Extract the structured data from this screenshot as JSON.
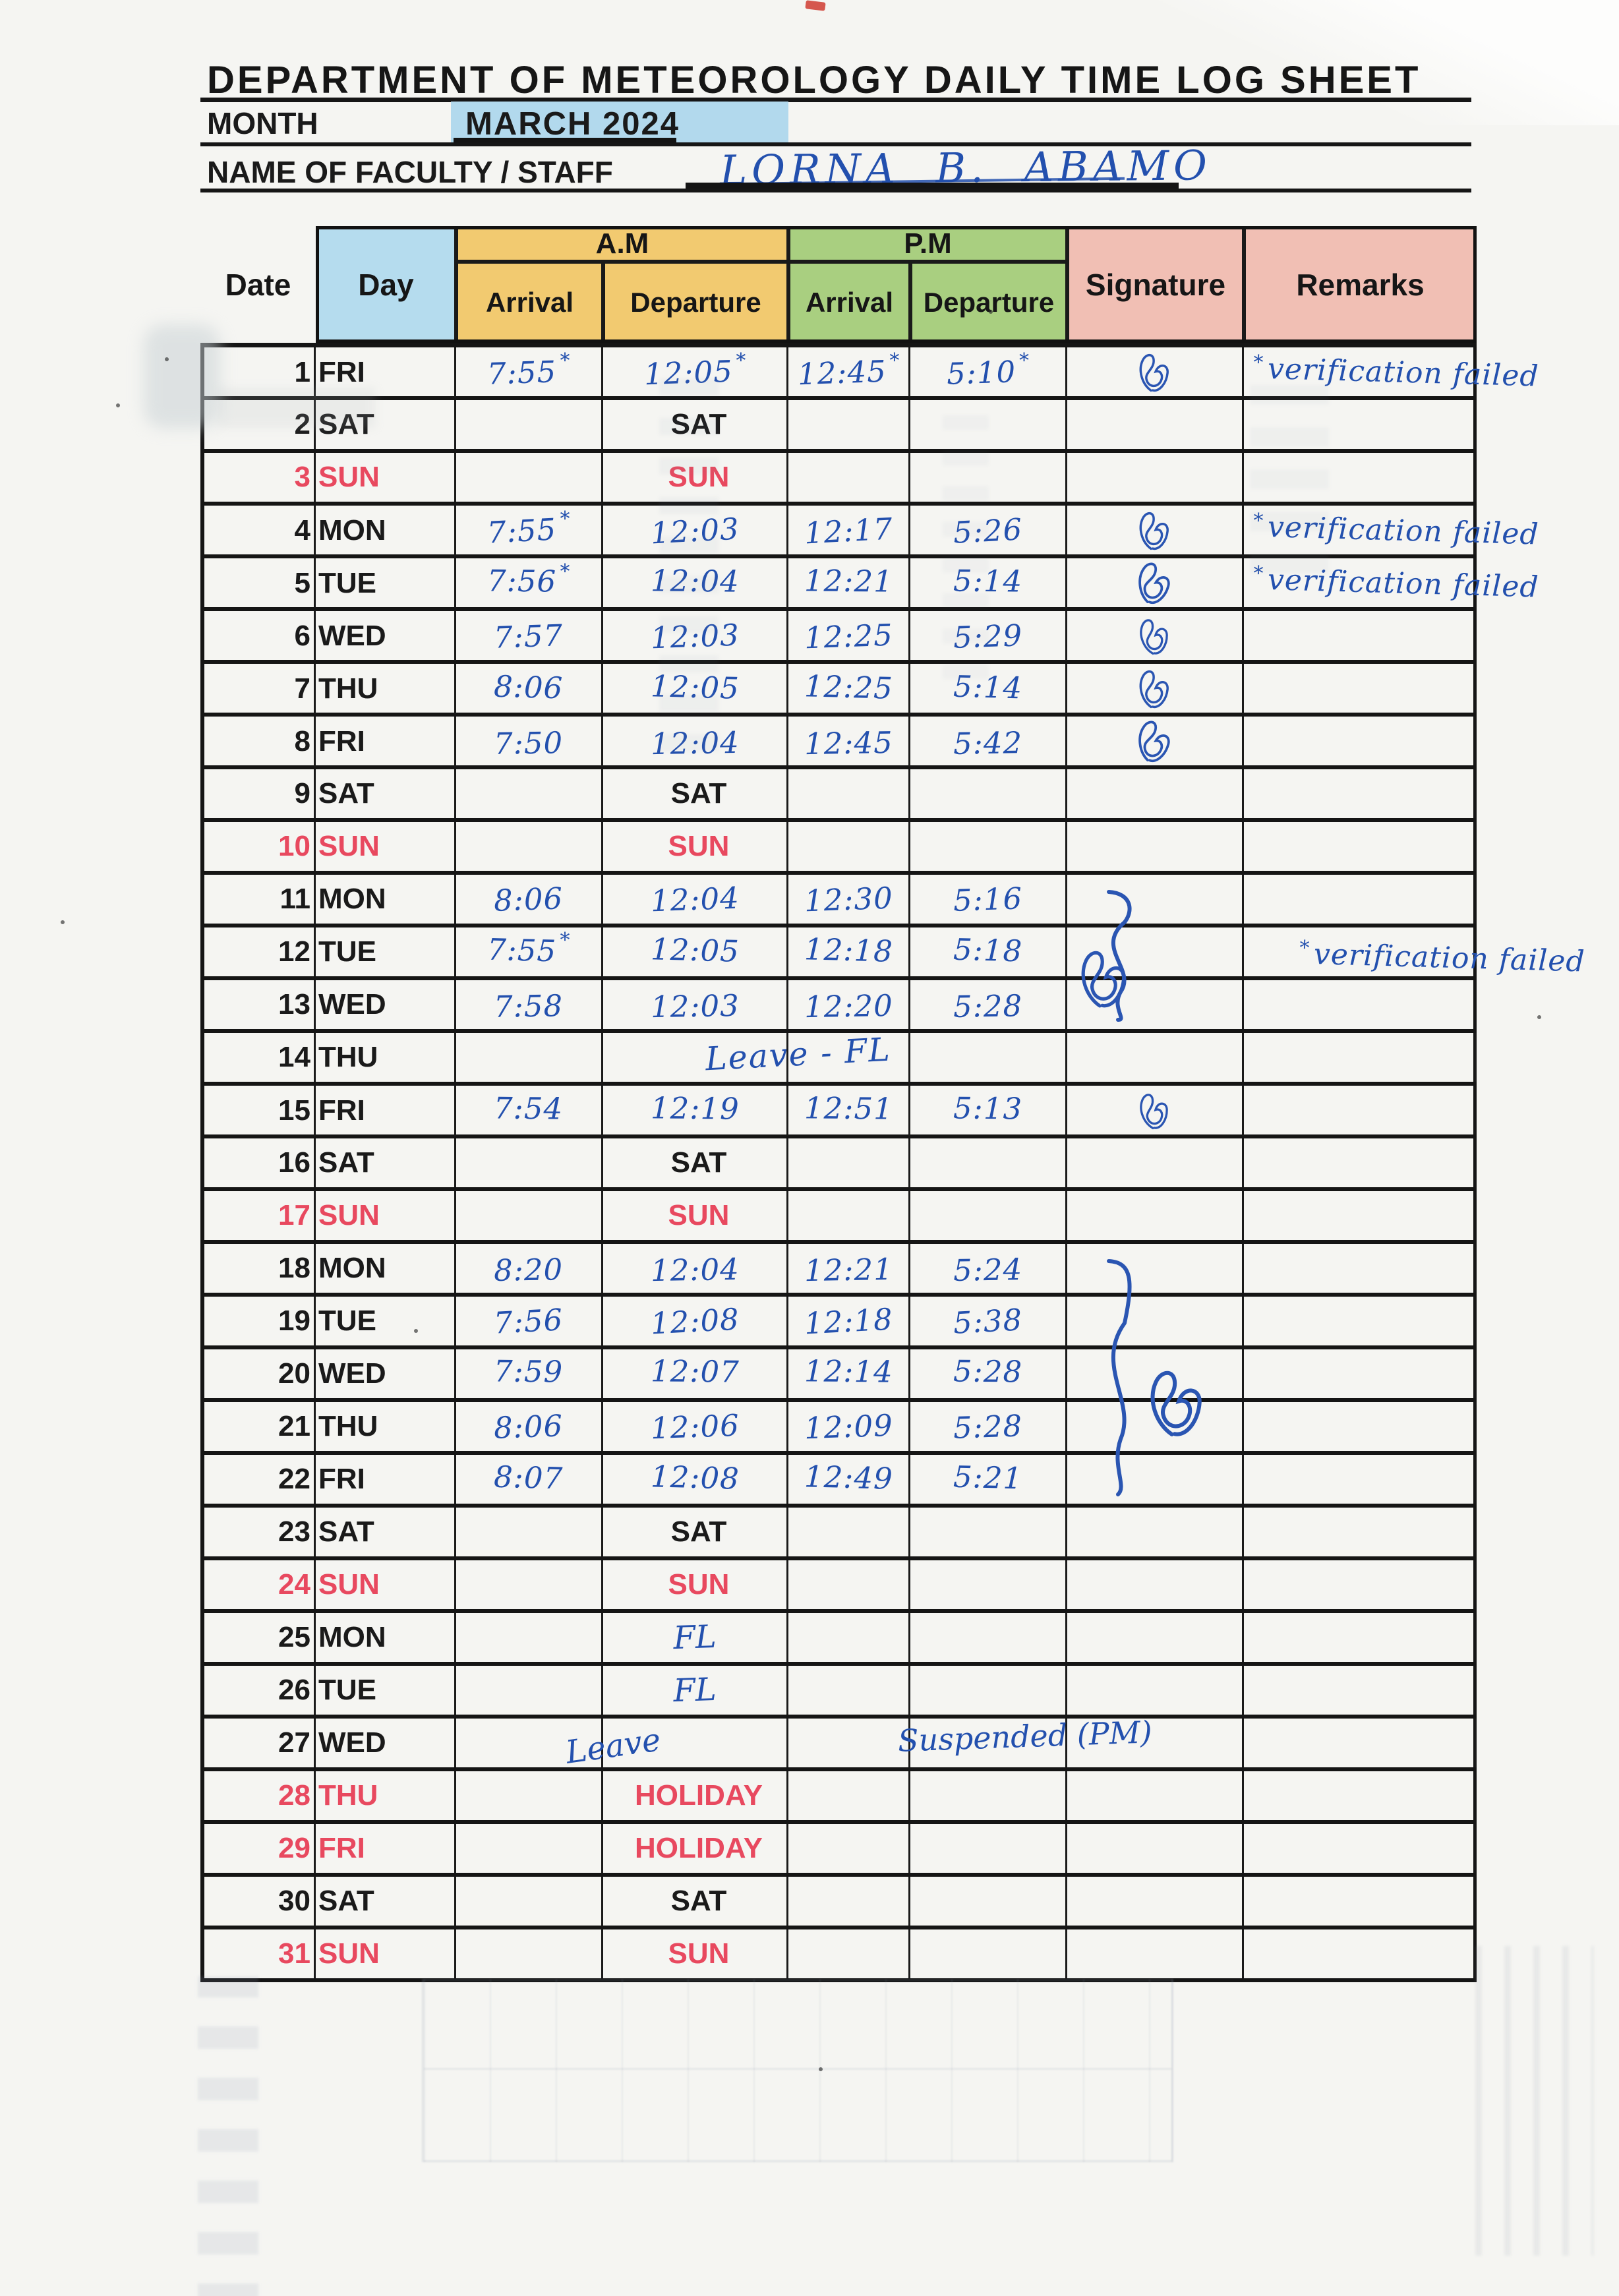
{
  "title": "DEPARTMENT OF METEOROLOGY DAILY TIME LOG SHEET",
  "month": {
    "label": "MONTH",
    "value": "MARCH 2024"
  },
  "name": {
    "label": "NAME OF FACULTY / STAFF",
    "value": "LORNA B. ABAMO"
  },
  "glyphs": {
    "star": "*"
  },
  "colors": {
    "pen_blue": "#2350ae",
    "print_red": "#e8495f",
    "month_highlight": "#b2d9ed",
    "header_day": "#b5dcee",
    "header_am": "#f2ca70",
    "header_pm": "#a9cf80",
    "header_signature": "#f1bfb4",
    "header_remarks": "#f1bfb4"
  },
  "table": {
    "headers": {
      "date": "Date",
      "day": "Day",
      "am": "A.M",
      "pm": "P.M",
      "am_arrival": "Arrival",
      "am_departure": "Departure",
      "pm_arrival": "Arrival",
      "pm_departure": "Departure",
      "signature": "Signature",
      "remarks": "Remarks"
    },
    "rows": [
      {
        "d": "1",
        "day": "FRI",
        "t": [
          "7:55",
          "12:05",
          "12:45",
          "5:10"
        ],
        "stars": [
          1,
          1,
          1,
          1
        ],
        "sig": 1,
        "remark": "verification failed"
      },
      {
        "d": "2",
        "day": "SAT",
        "note": "SAT"
      },
      {
        "d": "3",
        "day": "SUN",
        "red": 1,
        "note": "SUN",
        "note_red": 1
      },
      {
        "d": "4",
        "day": "MON",
        "t": [
          "7:55",
          "12:03",
          "12:17",
          "5:26"
        ],
        "stars": [
          1,
          0,
          0,
          0
        ],
        "sig": 1,
        "remark": "verification failed"
      },
      {
        "d": "5",
        "day": "TUE",
        "t": [
          "7:56",
          "12:04",
          "12:21",
          "5:14"
        ],
        "stars": [
          1,
          0,
          0,
          0
        ],
        "sig": 1,
        "remark": "verification failed"
      },
      {
        "d": "6",
        "day": "WED",
        "t": [
          "7:57",
          "12:03",
          "12:25",
          "5:29"
        ],
        "sig": 1
      },
      {
        "d": "7",
        "day": "THU",
        "t": [
          "8:06",
          "12:05",
          "12:25",
          "5:14"
        ],
        "sig": 1
      },
      {
        "d": "8",
        "day": "FRI",
        "t": [
          "7:50",
          "12:04",
          "12:45",
          "5:42"
        ],
        "sig": 1
      },
      {
        "d": "9",
        "day": "SAT",
        "note": "SAT"
      },
      {
        "d": "10",
        "day": "SUN",
        "red": 1,
        "note": "SUN",
        "note_red": 1
      },
      {
        "d": "11",
        "day": "MON",
        "t": [
          "8:06",
          "12:04",
          "12:30",
          "5:16"
        ]
      },
      {
        "d": "12",
        "day": "TUE",
        "t": [
          "7:55",
          "12:05",
          "12:18",
          "5:18"
        ],
        "stars": [
          1,
          0,
          0,
          0
        ],
        "remark": "verification failed"
      },
      {
        "d": "13",
        "day": "WED",
        "t": [
          "7:58",
          "12:03",
          "12:20",
          "5:28"
        ]
      },
      {
        "d": "14",
        "day": "THU",
        "span_note": "Leave - FL"
      },
      {
        "d": "15",
        "day": "FRI",
        "t": [
          "7:54",
          "12:19",
          "12:51",
          "5:13"
        ],
        "sig": 1
      },
      {
        "d": "16",
        "day": "SAT",
        "note": "SAT"
      },
      {
        "d": "17",
        "day": "SUN",
        "red": 1,
        "note": "SUN",
        "note_red": 1
      },
      {
        "d": "18",
        "day": "MON",
        "t": [
          "8:20",
          "12:04",
          "12:21",
          "5:24"
        ]
      },
      {
        "d": "19",
        "day": "TUE",
        "t": [
          "7:56",
          "12:08",
          "12:18",
          "5:38"
        ]
      },
      {
        "d": "20",
        "day": "WED",
        "t": [
          "7:59",
          "12:07",
          "12:14",
          "5:28"
        ]
      },
      {
        "d": "21",
        "day": "THU",
        "t": [
          "8:06",
          "12:06",
          "12:09",
          "5:28"
        ]
      },
      {
        "d": "22",
        "day": "FRI",
        "t": [
          "8:07",
          "12:08",
          "12:49",
          "5:21"
        ]
      },
      {
        "d": "23",
        "day": "SAT",
        "note": "SAT"
      },
      {
        "d": "24",
        "day": "SUN",
        "red": 1,
        "note": "SUN",
        "note_red": 1
      },
      {
        "d": "25",
        "day": "MON",
        "fl": "FL"
      },
      {
        "d": "26",
        "day": "TUE",
        "fl": "FL"
      },
      {
        "d": "27",
        "day": "WED",
        "leave": "Leave",
        "suspended": "Suspended (PM)"
      },
      {
        "d": "28",
        "day": "THU",
        "red": 1,
        "note": "HOLIDAY",
        "note_red": 1
      },
      {
        "d": "29",
        "day": "FRI",
        "red": 1,
        "note": "HOLIDAY",
        "note_red": 1
      },
      {
        "d": "30",
        "day": "SAT",
        "note": "SAT"
      },
      {
        "d": "31",
        "day": "SUN",
        "red": 1,
        "note": "SUN",
        "note_red": 1
      }
    ],
    "signature_brackets": [
      {
        "from_row": 11,
        "to_row": 13
      },
      {
        "from_row": 18,
        "to_row": 22
      }
    ]
  }
}
